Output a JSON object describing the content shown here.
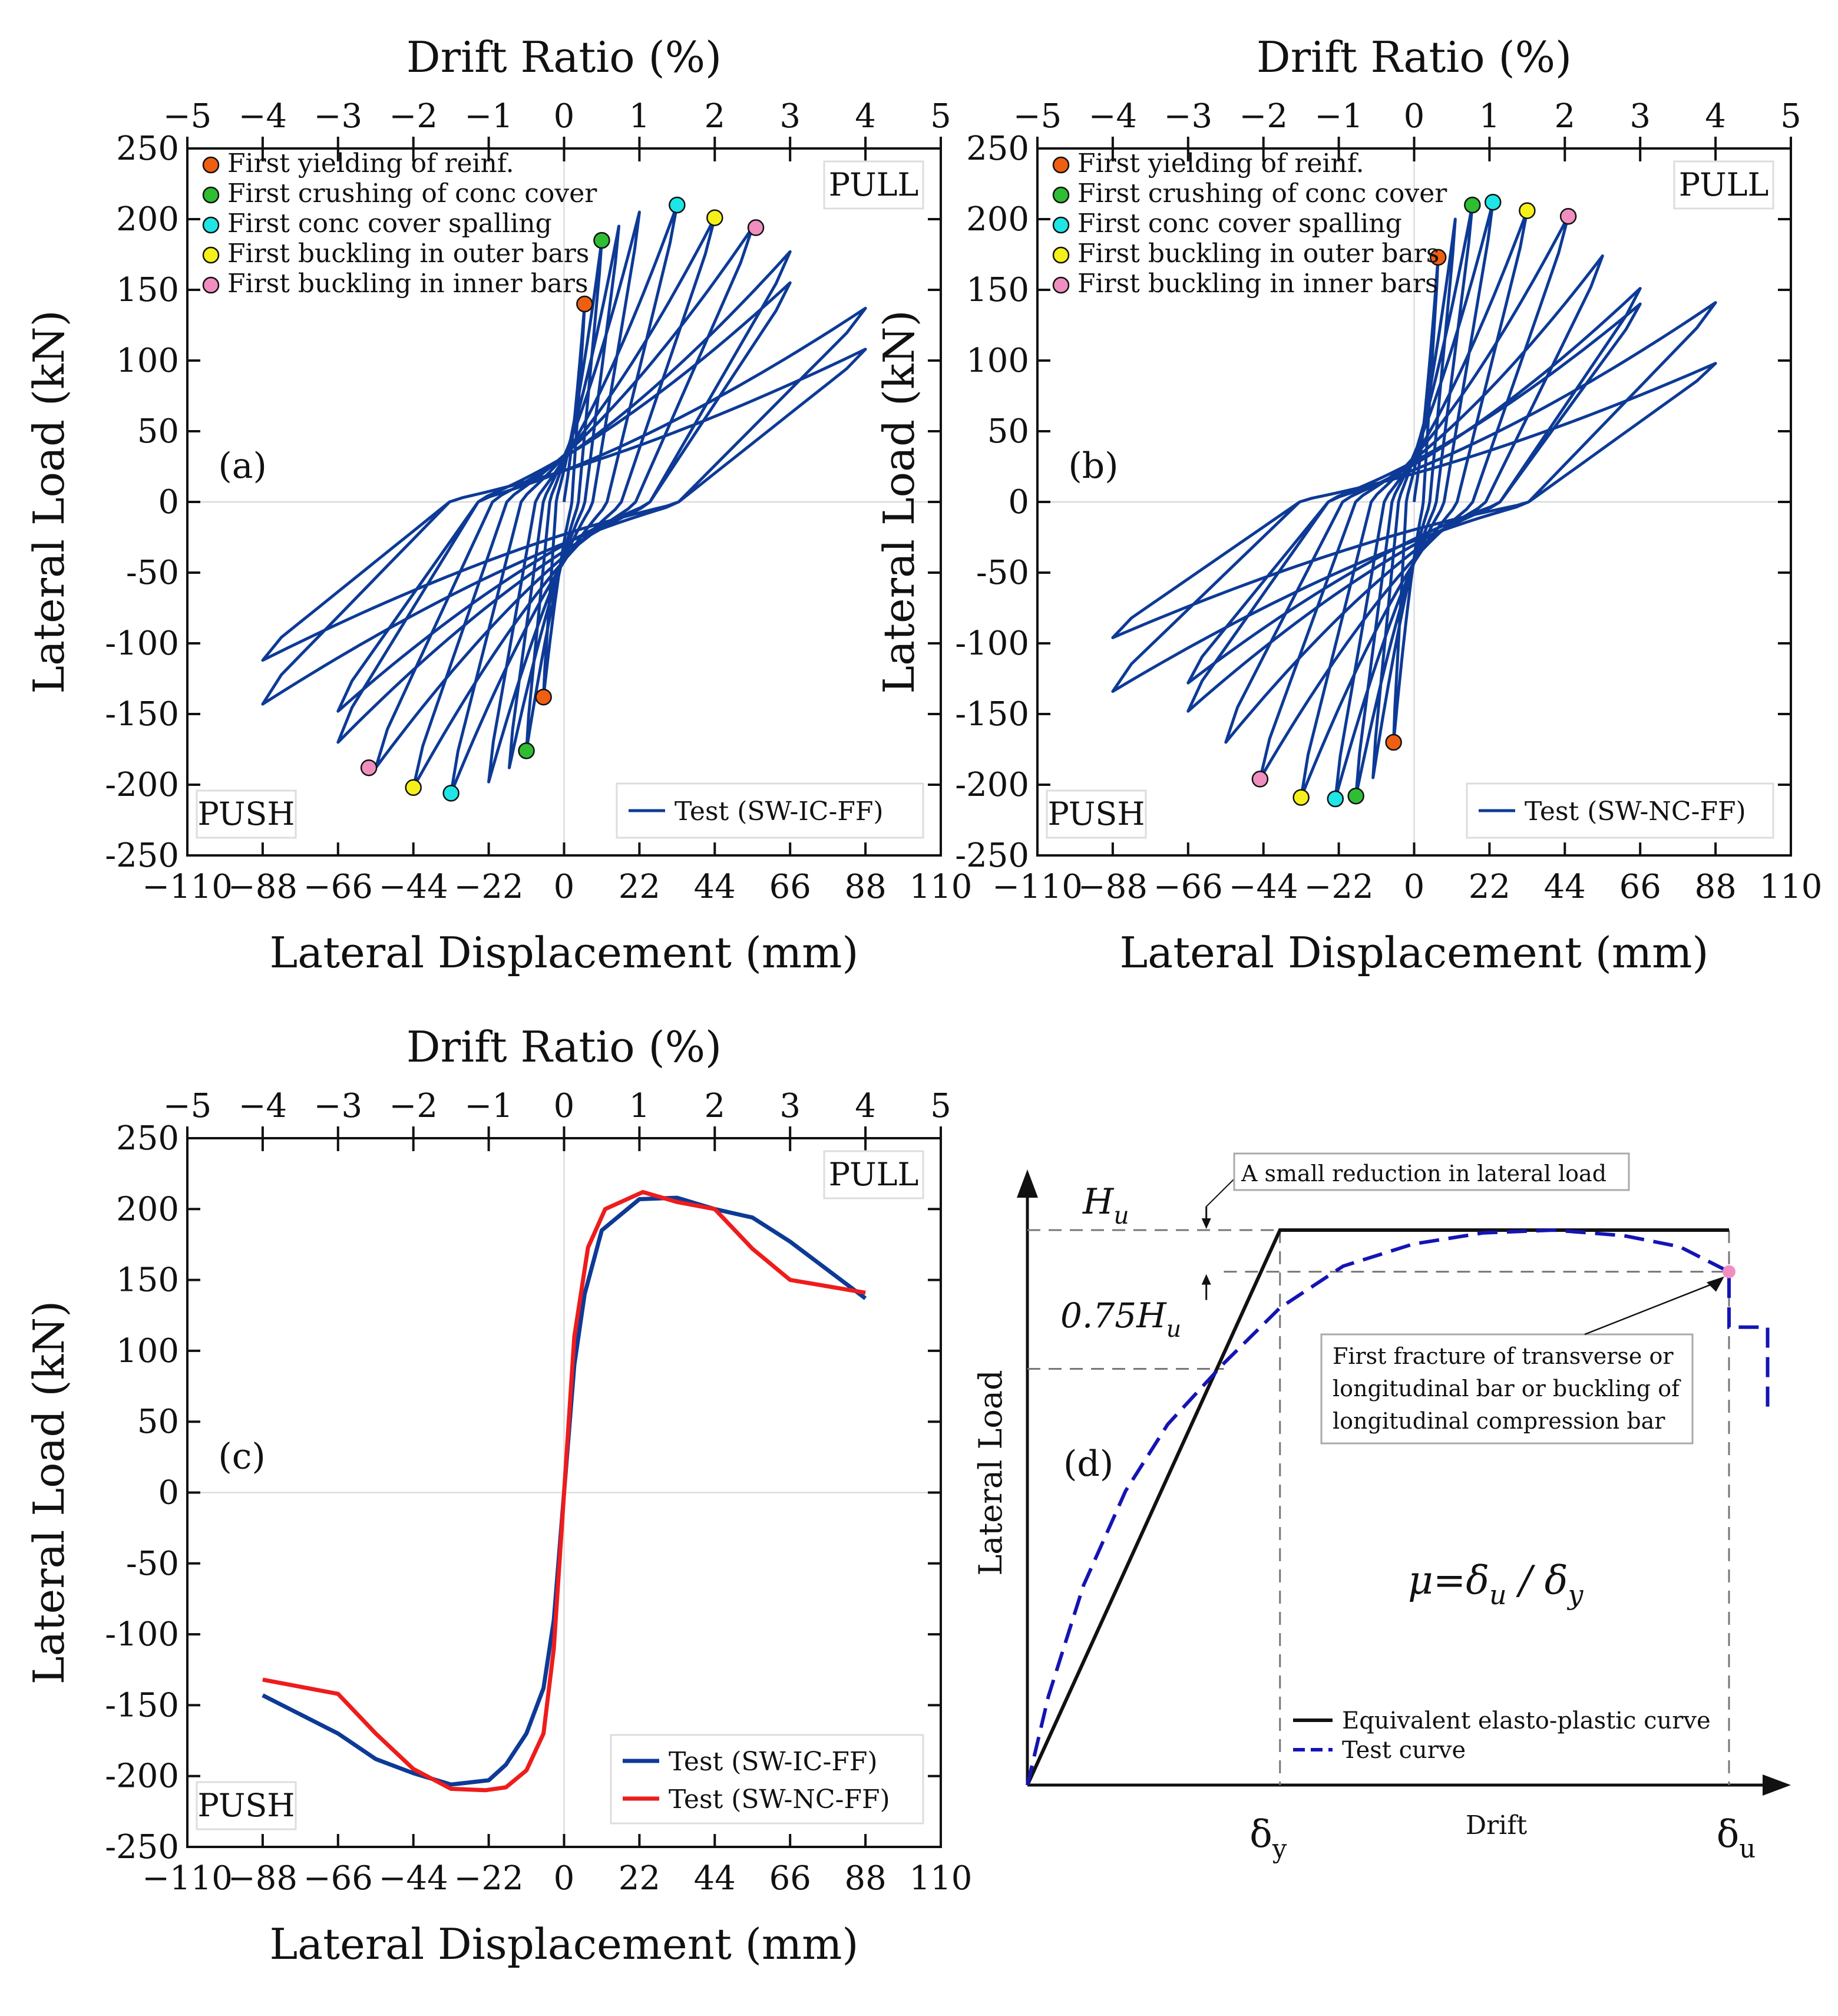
{
  "colors": {
    "series_blue": "#0d3a96",
    "series_red": "#ee1c1c",
    "yield": "#ef5f12",
    "crush": "#2ebd33",
    "spall": "#1ee6e6",
    "outer": "#f5f01a",
    "inner": "#f08fbf",
    "dashed_blue": "#1414b4",
    "black": "#111111"
  },
  "axes_common": {
    "x_title": "Lateral Displacement (mm)",
    "y_title": "Lateral Load (kN)",
    "top_title": "Drift Ratio (%)",
    "x_ticks": [
      "−110",
      "−88",
      "−66",
      "−44",
      "−22",
      "0",
      "22",
      "44",
      "66",
      "88",
      "110"
    ],
    "y_ticks": [
      "250",
      "200",
      "150",
      "100",
      "50",
      "0",
      "-50",
      "-100",
      "-150",
      "-200",
      "-250"
    ],
    "top_ticks": [
      "−5",
      "−4",
      "−3",
      "−2",
      "−1",
      "0",
      "1",
      "2",
      "3",
      "4",
      "5"
    ],
    "pull_label": "PULL",
    "push_label": "PUSH"
  },
  "chart_data": [
    {
      "id": "a",
      "type": "line",
      "panel_label": "(a)",
      "xlim": [
        -110,
        110
      ],
      "ylim": [
        -250,
        250
      ],
      "x2lim": [
        -5,
        5
      ],
      "legend": "Test (SW-IC-FF)",
      "event_legend": [
        "First yielding of reinf.",
        "First crushing of conc cover",
        "First conc cover spalling",
        "First buckling in outer bars",
        "First buckling in inner bars"
      ],
      "events": [
        {
          "kind": "yield",
          "x": 6,
          "y": 140
        },
        {
          "kind": "crush",
          "x": 11,
          "y": 185
        },
        {
          "kind": "spall",
          "x": 33,
          "y": 210
        },
        {
          "kind": "outer",
          "x": 44,
          "y": 201
        },
        {
          "kind": "inner",
          "x": 56,
          "y": 194
        },
        {
          "kind": "yield",
          "x": -6,
          "y": -138
        },
        {
          "kind": "crush",
          "x": -11,
          "y": -176
        },
        {
          "kind": "spall",
          "x": -33,
          "y": -206
        },
        {
          "kind": "outer",
          "x": -44,
          "y": -202
        },
        {
          "kind": "inner",
          "x": -57,
          "y": -188
        }
      ],
      "hysteresis_peaks": [
        {
          "dp": 6,
          "fp": 140,
          "dn": -6,
          "fn": -138
        },
        {
          "dp": 11,
          "fp": 185,
          "dn": -11,
          "fn": -176
        },
        {
          "dp": 16,
          "fp": 195,
          "dn": -16,
          "fn": -188
        },
        {
          "dp": 22,
          "fp": 205,
          "dn": -22,
          "fn": -198
        },
        {
          "dp": 33,
          "fp": 210,
          "dn": -33,
          "fn": -206
        },
        {
          "dp": 44,
          "fp": 201,
          "dn": -44,
          "fn": -202
        },
        {
          "dp": 55,
          "fp": 194,
          "dn": -55,
          "fn": -188
        },
        {
          "dp": 66,
          "fp": 177,
          "dn": -66,
          "fn": -170
        },
        {
          "dp": 66,
          "fp": 155,
          "dn": -66,
          "fn": -148
        },
        {
          "dp": 88,
          "fp": 137,
          "dn": -88,
          "fn": -143
        },
        {
          "dp": 88,
          "fp": 108,
          "dn": -88,
          "fn": -112
        }
      ]
    },
    {
      "id": "b",
      "type": "line",
      "panel_label": "(b)",
      "xlim": [
        -110,
        110
      ],
      "ylim": [
        -250,
        250
      ],
      "x2lim": [
        -5,
        5
      ],
      "legend": "Test (SW-NC-FF)",
      "event_legend": [
        "First yielding of reinf.",
        "First crushing of conc cover",
        "First conc cover spalling",
        "First buckling in outer bars",
        "First buckling in inner bars"
      ],
      "events": [
        {
          "kind": "yield",
          "x": 7,
          "y": 173
        },
        {
          "kind": "crush",
          "x": 17,
          "y": 210
        },
        {
          "kind": "spall",
          "x": 23,
          "y": 212
        },
        {
          "kind": "outer",
          "x": 33,
          "y": 206
        },
        {
          "kind": "inner",
          "x": 45,
          "y": 202
        },
        {
          "kind": "yield",
          "x": -6,
          "y": -170
        },
        {
          "kind": "crush",
          "x": -17,
          "y": -208
        },
        {
          "kind": "spall",
          "x": -23,
          "y": -210
        },
        {
          "kind": "outer",
          "x": -33,
          "y": -209
        },
        {
          "kind": "inner",
          "x": -45,
          "y": -196
        }
      ],
      "hysteresis_peaks": [
        {
          "dp": 7,
          "fp": 173,
          "dn": -6,
          "fn": -170
        },
        {
          "dp": 12,
          "fp": 200,
          "dn": -12,
          "fn": -195
        },
        {
          "dp": 17,
          "fp": 210,
          "dn": -17,
          "fn": -208
        },
        {
          "dp": 23,
          "fp": 212,
          "dn": -23,
          "fn": -210
        },
        {
          "dp": 33,
          "fp": 206,
          "dn": -33,
          "fn": -209
        },
        {
          "dp": 45,
          "fp": 202,
          "dn": -45,
          "fn": -196
        },
        {
          "dp": 55,
          "fp": 174,
          "dn": -55,
          "fn": -170
        },
        {
          "dp": 66,
          "fp": 151,
          "dn": -66,
          "fn": -148
        },
        {
          "dp": 66,
          "fp": 140,
          "dn": -66,
          "fn": -128
        },
        {
          "dp": 88,
          "fp": 141,
          "dn": -88,
          "fn": -134
        },
        {
          "dp": 88,
          "fp": 98,
          "dn": -88,
          "fn": -96
        }
      ]
    },
    {
      "id": "c",
      "type": "line",
      "panel_label": "(c)",
      "xlim": [
        -110,
        110
      ],
      "ylim": [
        -250,
        250
      ],
      "x2lim": [
        -5,
        5
      ],
      "series": [
        {
          "name": "Test (SW-IC-FF)",
          "color_key": "series_blue",
          "x": [
            -88,
            -66,
            -55,
            -44,
            -33,
            -22,
            -17,
            -11,
            -6,
            -3,
            0,
            3,
            6,
            11,
            22,
            33,
            44,
            55,
            66,
            88
          ],
          "y": [
            -143,
            -170,
            -188,
            -198,
            -206,
            -203,
            -192,
            -170,
            -138,
            -90,
            0,
            90,
            140,
            185,
            207,
            208,
            200,
            194,
            177,
            137
          ]
        },
        {
          "name": "Test (SW-NC-FF)",
          "color_key": "series_red",
          "x": [
            -88,
            -66,
            -55,
            -44,
            -33,
            -23,
            -17,
            -11,
            -6,
            -3,
            0,
            3,
            7,
            12,
            23,
            33,
            44,
            55,
            66,
            88
          ],
          "y": [
            -132,
            -142,
            -170,
            -195,
            -209,
            -210,
            -208,
            -196,
            -170,
            -110,
            0,
            110,
            173,
            200,
            212,
            205,
            200,
            172,
            150,
            141
          ]
        }
      ]
    },
    {
      "id": "d",
      "type": "line",
      "panel_label": "(d)",
      "y_title": "Lateral Load",
      "x_title": "Drift",
      "hu_label": "H",
      "hu_sub": "u",
      "h75_label": "0.75H",
      "h75_sub": "u",
      "dy_label": "δ",
      "dy_sub": "y",
      "du_label": "δ",
      "du_sub": "u",
      "mu_lhs": "μ=δ",
      "mu_sub1": "u",
      "mu_mid": " / δ",
      "mu_sub2": "y",
      "reduction_note": "A small reduction in lateral load",
      "fracture_note": [
        "First fracture of transverse or",
        "longitudinal bar or buckling of",
        "longitudinal compression bar"
      ],
      "legend": [
        "Equivalent elasto-plastic curve",
        "Test curve"
      ],
      "delta_y": 0.36,
      "delta_u": 1.0,
      "hu": 1.0,
      "drop_load": 0.925,
      "test_curve": [
        [
          0,
          0
        ],
        [
          0.03,
          0.16
        ],
        [
          0.08,
          0.36
        ],
        [
          0.14,
          0.53
        ],
        [
          0.2,
          0.65
        ],
        [
          0.28,
          0.76
        ],
        [
          0.36,
          0.86
        ],
        [
          0.45,
          0.935
        ],
        [
          0.55,
          0.975
        ],
        [
          0.65,
          0.995
        ],
        [
          0.75,
          1.0
        ],
        [
          0.85,
          0.99
        ],
        [
          0.93,
          0.97
        ],
        [
          1.0,
          0.925
        ],
        [
          1.0,
          0.825
        ],
        [
          1.055,
          0.825
        ],
        [
          1.055,
          0.67
        ]
      ]
    }
  ]
}
